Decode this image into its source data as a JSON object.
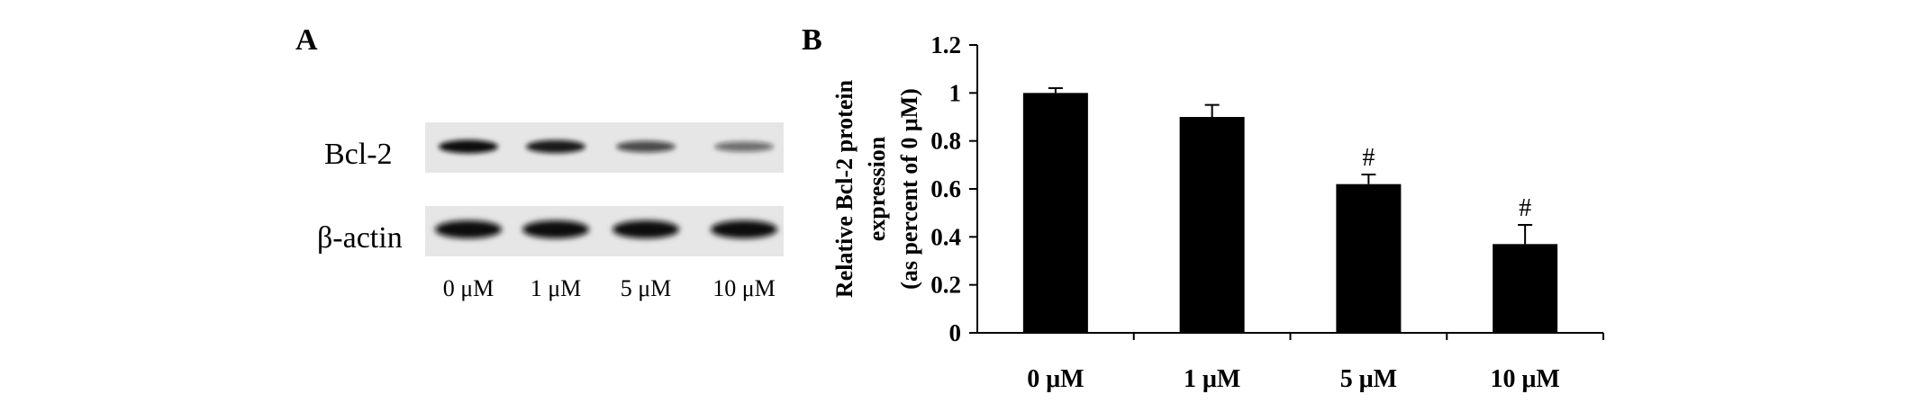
{
  "panel_a": {
    "letter": "A",
    "rows": [
      {
        "label": "Bcl-2",
        "band_intensity": [
          1.0,
          0.92,
          0.62,
          0.38
        ]
      },
      {
        "label": "β-actin",
        "band_intensity": [
          1.0,
          1.0,
          1.0,
          1.0
        ]
      }
    ],
    "lanes": [
      "0 μM",
      "1 μM",
      "5 μM",
      "10 μM"
    ],
    "colors": {
      "membrane": "#e6e6e6",
      "band": "#111111"
    }
  },
  "panel_b": {
    "letter": "B"
  },
  "chart_data": {
    "type": "bar",
    "title": "",
    "categories": [
      "0 μM",
      "1 μM",
      "5 μM",
      "10 μM"
    ],
    "values": [
      1.0,
      0.9,
      0.62,
      0.37
    ],
    "errors": [
      0.02,
      0.05,
      0.04,
      0.08
    ],
    "annotations": [
      "",
      "",
      "#",
      "#"
    ],
    "ylabel_lines": [
      "Relative Bcl-2 protein",
      "expression",
      "(as percent of 0 μM)"
    ],
    "xlabel": "",
    "ylim": [
      0,
      1.2
    ],
    "yticks": [
      0,
      0.2,
      0.4,
      0.6,
      0.8,
      1,
      1.2
    ],
    "ytick_labels": [
      "0",
      "0.2",
      "0.4",
      "0.6",
      "0.8",
      "1",
      "1.2"
    ],
    "grid": false,
    "legend": "none",
    "bar_color": "#000000"
  }
}
